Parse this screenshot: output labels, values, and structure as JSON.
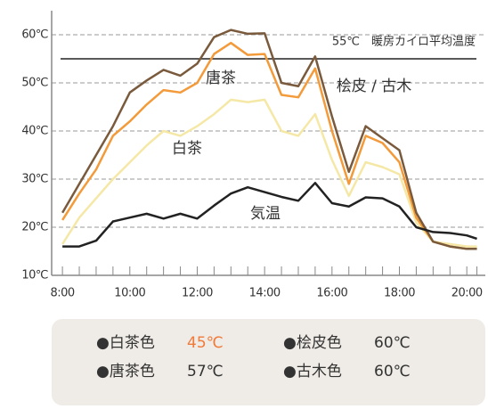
{
  "chart_data": {
    "type": "line",
    "x": [
      8,
      8.5,
      9,
      9.5,
      10,
      10.5,
      11,
      11.5,
      12,
      12.5,
      13,
      13.5,
      14,
      14.5,
      15,
      15.5,
      16,
      16.5,
      17,
      17.5,
      18,
      18.5,
      19,
      19.5,
      20,
      20.3
    ],
    "series": [
      {
        "color": "#f5e8a6",
        "values": [
          16.5,
          22,
          26,
          30,
          33.5,
          37,
          40,
          39,
          41,
          43.5,
          46.5,
          46,
          46.5,
          40,
          39,
          43.5,
          34,
          26.5,
          33.5,
          32.5,
          31,
          21,
          17,
          16.5,
          16,
          16
        ]
      },
      {
        "color": "#f39a3a",
        "values": [
          21.5,
          27,
          32,
          39,
          42,
          45.5,
          48.5,
          48,
          50,
          56,
          58.3,
          55.8,
          56,
          47.5,
          47,
          53,
          40,
          29,
          39,
          37.5,
          33.5,
          22,
          17,
          16,
          15.5,
          15.5
        ]
      },
      {
        "color": "#7a5a3c",
        "values": [
          23,
          29,
          35,
          41,
          48,
          50.5,
          52.7,
          51.5,
          54,
          59.5,
          61,
          60.2,
          60.3,
          50,
          49.3,
          55.5,
          43,
          31.5,
          41,
          38.5,
          36,
          23,
          17,
          16,
          15.5,
          15.5
        ]
      },
      {
        "color": "#222222",
        "values": [
          16,
          16,
          17.2,
          21.2,
          22,
          22.8,
          21.8,
          22.8,
          21.8,
          24.5,
          27,
          28.3,
          27.3,
          26.3,
          25.5,
          29.2,
          25,
          24.3,
          26.2,
          26,
          24.3,
          20,
          19,
          18.8,
          18.3,
          17.6
        ]
      }
    ],
    "xlim": [
      7.68,
      20.55
    ],
    "ylim": [
      10,
      65
    ],
    "xticks": [
      {
        "value": 8,
        "label": "8:00"
      },
      {
        "value": 10,
        "label": "10:00"
      },
      {
        "value": 12,
        "label": "12:00"
      },
      {
        "value": 14,
        "label": "14:00"
      },
      {
        "value": 16,
        "label": "16:00"
      },
      {
        "value": 18,
        "label": "18:00"
      },
      {
        "value": 20,
        "label": "20:00"
      }
    ],
    "yticks": [
      {
        "value": 10,
        "label": "10℃"
      },
      {
        "value": 20,
        "label": "20℃"
      },
      {
        "value": 30,
        "label": "30℃"
      },
      {
        "value": 40,
        "label": "40℃"
      },
      {
        "value": 50,
        "label": "50℃"
      },
      {
        "value": 60,
        "label": "60℃"
      }
    ],
    "grid": true,
    "reference_line": {
      "value": 55,
      "label": "55℃　暖房カイロ平均温度",
      "color": "#222222"
    },
    "annotations": [
      "唐茶",
      "桧皮 / 古木",
      "白茶",
      "気温"
    ],
    "legend": [
      {
        "name": "●白茶色",
        "value_label": "45℃",
        "color": "#f07a3a"
      },
      {
        "name": "●桧皮色",
        "value_label": "60℃",
        "color": "#333333"
      },
      {
        "name": "●唐茶色",
        "value_label": "57℃",
        "color": "#333333"
      },
      {
        "name": "●古木色",
        "value_label": "60℃",
        "color": "#333333"
      }
    ]
  }
}
